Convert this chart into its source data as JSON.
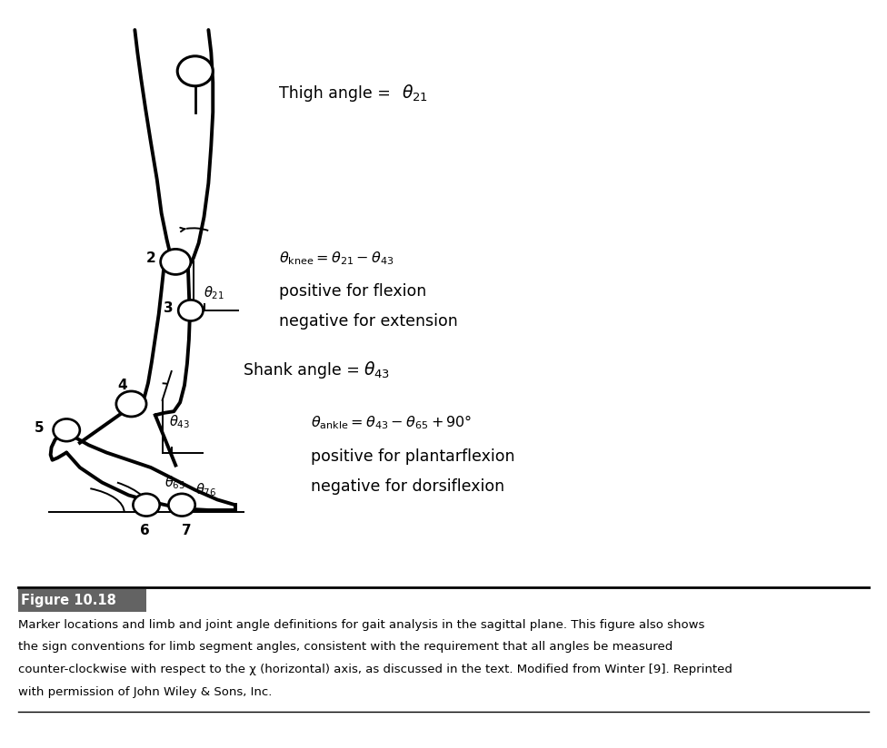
{
  "bg_color": "#ffffff",
  "figure_label": "Figure 10.18",
  "caption_lines": [
    "Marker locations and limb and joint angle definitions for gait analysis in the sagittal plane. This figure also shows",
    "the sign conventions for limb segment angles, consistent with the requirement that all angles be measured",
    "counter-clockwise with respect to the χ (horizontal) axis, as discussed in the text. Modified from Winter [9]. Reprinted",
    "with permission of John Wiley & Sons, Inc."
  ],
  "lw_body": 2.8,
  "lw_ref": 1.4
}
